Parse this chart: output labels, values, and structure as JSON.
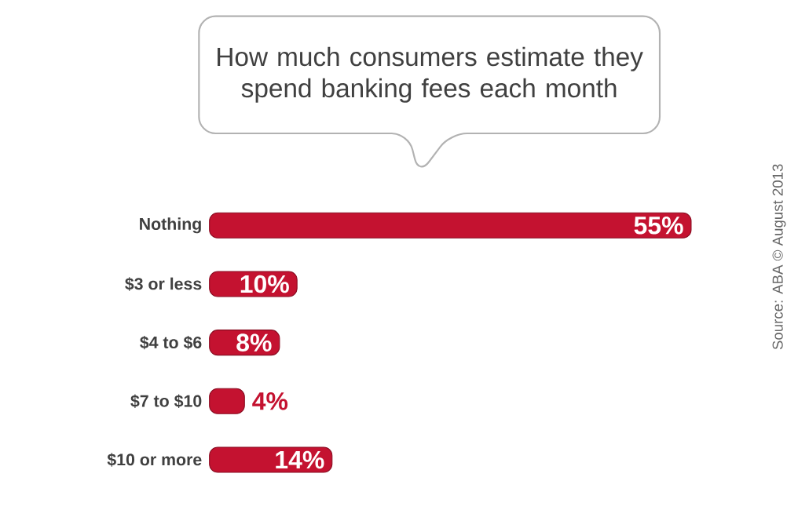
{
  "chart_data": {
    "type": "bar",
    "orientation": "horizontal",
    "title": "How much consumers estimate they spend banking fees each month",
    "categories": [
      "Nothing",
      "$3 or less",
      "$4 to $6",
      "$7 to $10",
      "$10 or more"
    ],
    "values": [
      55,
      10,
      8,
      4,
      14
    ],
    "value_labels": [
      "55%",
      "10%",
      "8%",
      "4%",
      "14%"
    ],
    "color": "#c41230",
    "annotations": [
      "Source: ABA © August 2013"
    ]
  }
}
